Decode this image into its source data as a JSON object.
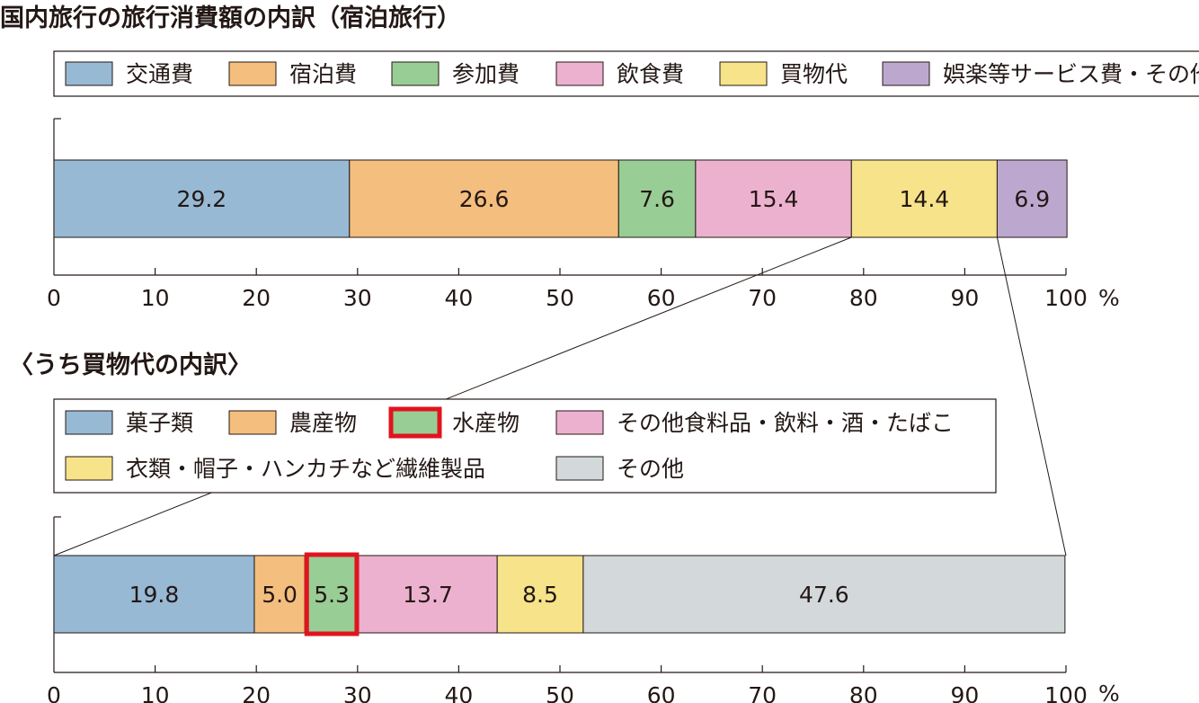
{
  "chart_data": [
    {
      "type": "bar",
      "orientation": "horizontal-stacked-100",
      "title": "国内旅行の旅行消費額の内訳（宿泊旅行）",
      "unit": "%",
      "xlim": [
        0,
        100
      ],
      "ticks": [
        0,
        10,
        20,
        30,
        40,
        50,
        60,
        70,
        80,
        90,
        100
      ],
      "tick_labels": [
        "0",
        "10",
        "20",
        "30",
        "40",
        "50",
        "60",
        "70",
        "80",
        "90",
        "100"
      ],
      "legend_position": "top",
      "series": [
        {
          "name": "交通費",
          "value": 29.2,
          "label": "29.2",
          "color": "#97b9d4"
        },
        {
          "name": "宿泊費",
          "value": 26.6,
          "label": "26.6",
          "color": "#f4be7e"
        },
        {
          "name": "参加費",
          "value": 7.6,
          "label": "7.6",
          "color": "#98cd95"
        },
        {
          "name": "飲食費",
          "value": 15.4,
          "label": "15.4",
          "color": "#edb1d0"
        },
        {
          "name": "買物代",
          "value": 14.4,
          "label": "14.4",
          "color": "#f6e38a"
        },
        {
          "name": "娯楽等サービス費・その他",
          "value": 6.9,
          "label": "6.9",
          "color": "#bca8cf"
        }
      ],
      "legend_labels": [
        "交通費",
        "宿泊費",
        "参加費",
        "飲食費",
        "買物代",
        "娯楽等サービス費・その他"
      ],
      "legend_colors": [
        "#97b9d4",
        "#f4be7e",
        "#98cd95",
        "#edb1d0",
        "#f6e38a",
        "#bca8cf"
      ]
    },
    {
      "type": "bar",
      "orientation": "horizontal-stacked-100",
      "title": "〈うち買物代の内訳〉",
      "unit": "%",
      "xlim": [
        0,
        100
      ],
      "ticks": [
        0,
        10,
        20,
        30,
        40,
        50,
        60,
        70,
        80,
        90,
        100
      ],
      "tick_labels": [
        "0",
        "10",
        "20",
        "30",
        "40",
        "50",
        "60",
        "70",
        "80",
        "90",
        "100"
      ],
      "legend_position": "top",
      "highlight_color": "#e1141e",
      "series": [
        {
          "name": "菓子類",
          "value": 19.8,
          "label": "19.8",
          "color": "#97b9d4",
          "highlighted": false
        },
        {
          "name": "農産物",
          "value": 5.0,
          "label": "5.0",
          "color": "#f4be7e",
          "highlighted": false
        },
        {
          "name": "水産物",
          "value": 5.3,
          "label": "5.3",
          "color": "#98cd95",
          "highlighted": true
        },
        {
          "name": "その他食料品・飲料・酒・たばこ",
          "value": 13.7,
          "label": "13.7",
          "color": "#edb1d0",
          "highlighted": false
        },
        {
          "name": "衣類・帽子・ハンカチなど繊維製品",
          "value": 8.5,
          "label": "8.5",
          "color": "#f6e38a",
          "highlighted": false
        },
        {
          "name": "その他",
          "value": 47.6,
          "label": "47.6",
          "color": "#d3d8db",
          "highlighted": false
        }
      ],
      "legend_labels": [
        "菓子類",
        "農産物",
        "水産物",
        "その他食料品・飲料・酒・たばこ",
        "衣類・帽子・ハンカチなど繊維製品",
        "その他"
      ],
      "legend_colors": [
        "#97b9d4",
        "#f4be7e",
        "#98cd95",
        "#edb1d0",
        "#f6e38a",
        "#d3d8db"
      ]
    }
  ],
  "unit_label": "%",
  "breakdown_of_segment": "買物代"
}
